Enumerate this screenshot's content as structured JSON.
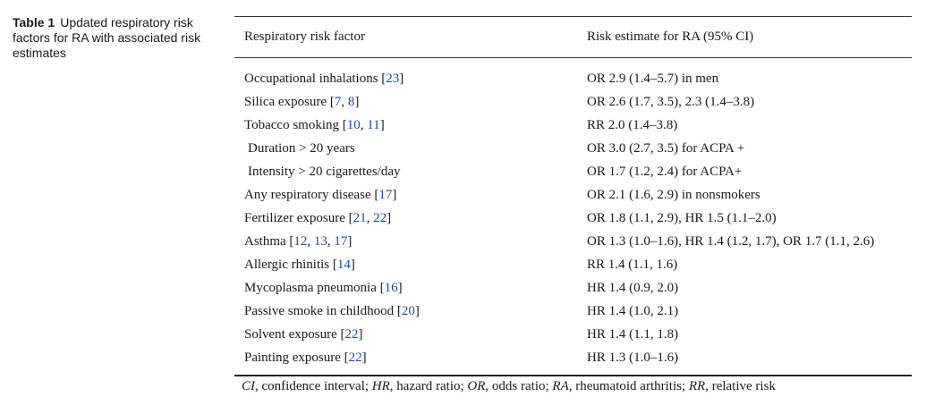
{
  "caption": {
    "label": "Table 1",
    "text": "Updated respiratory risk factors for RA with associated risk estimates"
  },
  "table": {
    "headers": [
      "Respiratory risk factor",
      "Risk estimate for RA (95% CI)"
    ],
    "rows": [
      {
        "factor": "Occupational inhalations",
        "refs": [
          "23"
        ],
        "estimate": "OR 2.9 (1.4–5.7) in men",
        "sub": false
      },
      {
        "factor": "Silica exposure",
        "refs": [
          "7",
          "8"
        ],
        "estimate": "OR 2.6 (1.7, 3.5), 2.3 (1.4–3.8)",
        "sub": false
      },
      {
        "factor": "Tobacco smoking",
        "refs": [
          "10",
          "11"
        ],
        "estimate": "RR 2.0 (1.4–3.8)",
        "sub": false
      },
      {
        "factor": "Duration > 20 years",
        "refs": [],
        "estimate": "OR 3.0 (2.7, 3.5) for ACPA +",
        "sub": true
      },
      {
        "factor": "Intensity > 20 cigarettes/day",
        "refs": [],
        "estimate": "OR 1.7 (1.2, 2.4) for ACPA+",
        "sub": true
      },
      {
        "factor": "Any respiratory disease",
        "refs": [
          "17"
        ],
        "estimate": "OR 2.1 (1.6, 2.9) in nonsmokers",
        "sub": false
      },
      {
        "factor": "Fertilizer exposure",
        "refs": [
          "21",
          "22"
        ],
        "estimate": "OR 1.8 (1.1, 2.9), HR 1.5 (1.1–2.0)",
        "sub": false
      },
      {
        "factor": "Asthma",
        "refs": [
          "12",
          "13",
          "17"
        ],
        "estimate": "OR 1.3 (1.0–1.6), HR 1.4 (1.2, 1.7), OR 1.7 (1.1, 2.6)",
        "sub": false
      },
      {
        "factor": "Allergic rhinitis",
        "refs": [
          "14"
        ],
        "estimate": "RR 1.4 (1.1, 1.6)",
        "sub": false
      },
      {
        "factor": "Mycoplasma pneumonia",
        "refs": [
          "16"
        ],
        "estimate": "HR 1.4 (0.9, 2.0)",
        "sub": false
      },
      {
        "factor": "Passive smoke in childhood",
        "refs": [
          "20"
        ],
        "estimate": "HR 1.4 (1.0, 2.1)",
        "sub": false
      },
      {
        "factor": "Solvent exposure",
        "refs": [
          "22"
        ],
        "estimate": "HR 1.4 (1.1, 1.8)",
        "sub": false
      },
      {
        "factor": "Painting exposure",
        "refs": [
          "22"
        ],
        "estimate": "HR 1.3 (1.0–1.6)",
        "sub": false
      }
    ]
  },
  "footnote": [
    {
      "abbr": "CI",
      "def": ", confidence interval; "
    },
    {
      "abbr": "HR",
      "def": ", hazard ratio; "
    },
    {
      "abbr": "OR",
      "def": ", odds ratio; "
    },
    {
      "abbr": "RA",
      "def": ", rheumatoid arthritis; "
    },
    {
      "abbr": "RR",
      "def": ", relative risk"
    }
  ]
}
